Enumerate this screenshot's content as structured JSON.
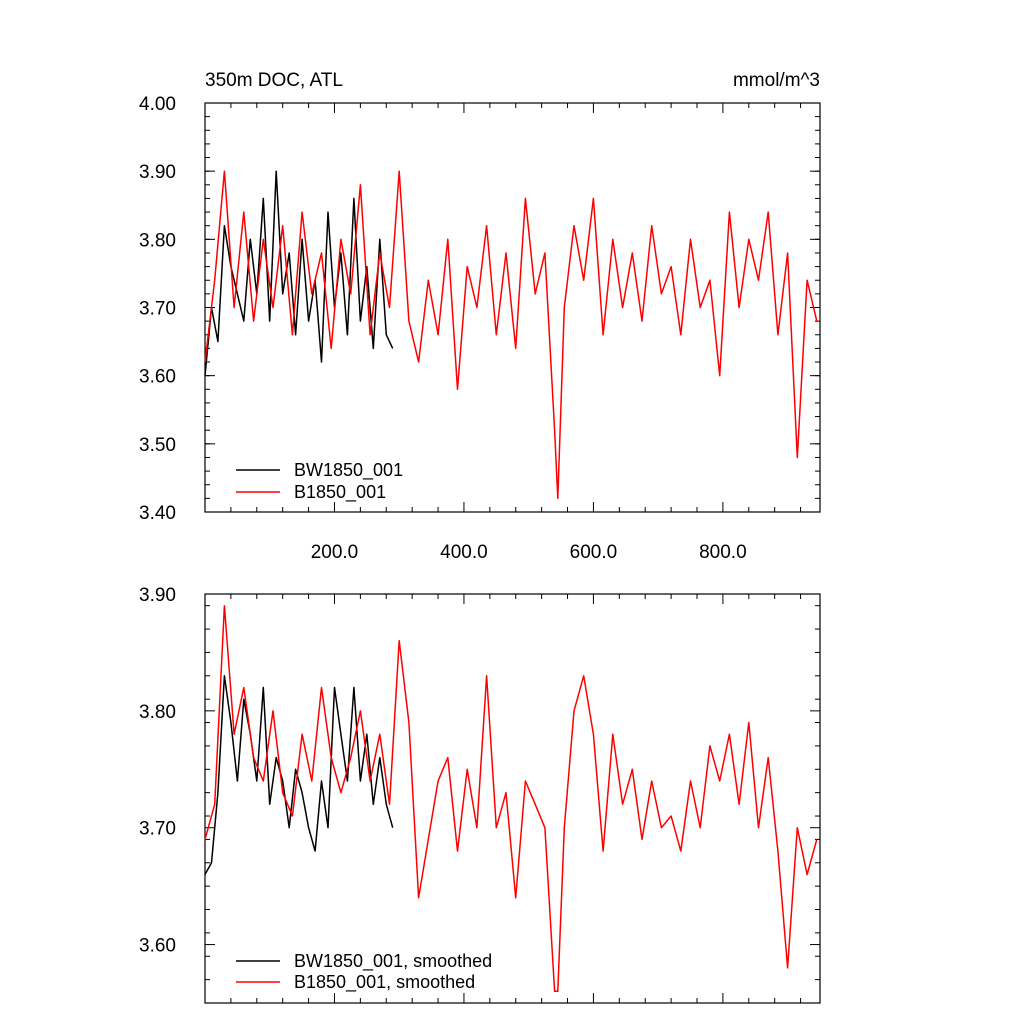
{
  "chart_data": [
    {
      "type": "line",
      "title": "350m DOC, ATL",
      "units": "mmol/m^3",
      "xlim": [
        0,
        950
      ],
      "ylim": [
        3.4,
        4.0
      ],
      "y_ticks": [
        3.4,
        3.5,
        3.6,
        3.7,
        3.8,
        3.9,
        4.0
      ],
      "y_tick_labels": [
        "3.40",
        "3.50",
        "3.60",
        "3.70",
        "3.80",
        "3.90",
        "4.00"
      ],
      "x_ticks": [
        200,
        400,
        600,
        800
      ],
      "x_tick_labels": [
        "200.0",
        "400.0",
        "600.0",
        "800.0"
      ],
      "grid": false,
      "legend_position": "bottom-left",
      "series": [
        {
          "name": "BW1850_001",
          "color": "#000000",
          "x": [
            0,
            10,
            20,
            30,
            40,
            50,
            60,
            70,
            80,
            90,
            100,
            110,
            120,
            130,
            140,
            150,
            160,
            170,
            180,
            190,
            200,
            210,
            220,
            230,
            240,
            250,
            260,
            270,
            280,
            290
          ],
          "values": [
            3.6,
            3.7,
            3.65,
            3.82,
            3.76,
            3.72,
            3.68,
            3.8,
            3.72,
            3.86,
            3.68,
            3.9,
            3.72,
            3.78,
            3.66,
            3.8,
            3.68,
            3.74,
            3.62,
            3.84,
            3.7,
            3.78,
            3.66,
            3.86,
            3.68,
            3.76,
            3.64,
            3.8,
            3.66,
            3.64
          ]
        },
        {
          "name": "B1850_001",
          "color": "#ff0000",
          "x": [
            0,
            15,
            30,
            45,
            60,
            75,
            90,
            105,
            120,
            135,
            150,
            165,
            180,
            195,
            210,
            225,
            240,
            255,
            270,
            285,
            300,
            315,
            330,
            345,
            360,
            375,
            390,
            405,
            420,
            435,
            450,
            465,
            480,
            495,
            510,
            525,
            540,
            545,
            555,
            570,
            585,
            600,
            615,
            630,
            645,
            660,
            675,
            690,
            705,
            720,
            735,
            750,
            765,
            780,
            795,
            810,
            825,
            840,
            855,
            870,
            885,
            900,
            915,
            930,
            945
          ],
          "values": [
            3.62,
            3.74,
            3.9,
            3.7,
            3.84,
            3.68,
            3.8,
            3.7,
            3.82,
            3.66,
            3.84,
            3.72,
            3.78,
            3.64,
            3.8,
            3.72,
            3.88,
            3.66,
            3.78,
            3.7,
            3.9,
            3.68,
            3.62,
            3.74,
            3.66,
            3.8,
            3.58,
            3.76,
            3.7,
            3.82,
            3.66,
            3.78,
            3.64,
            3.86,
            3.72,
            3.78,
            3.52,
            3.42,
            3.7,
            3.82,
            3.74,
            3.86,
            3.66,
            3.8,
            3.7,
            3.78,
            3.68,
            3.82,
            3.72,
            3.76,
            3.66,
            3.8,
            3.7,
            3.74,
            3.6,
            3.84,
            3.7,
            3.8,
            3.74,
            3.84,
            3.66,
            3.78,
            3.48,
            3.74,
            3.68
          ]
        }
      ]
    },
    {
      "type": "line",
      "xlim": [
        0,
        950
      ],
      "ylim": [
        3.55,
        3.9
      ],
      "y_ticks": [
        3.6,
        3.7,
        3.8,
        3.9
      ],
      "y_tick_labels": [
        "3.60",
        "3.70",
        "3.80",
        "3.90"
      ],
      "x_ticks": [
        200,
        400,
        600,
        800
      ],
      "grid": false,
      "legend_position": "bottom-left",
      "series": [
        {
          "name": "BW1850_001, smoothed",
          "color": "#000000",
          "x": [
            0,
            10,
            20,
            30,
            40,
            50,
            60,
            70,
            80,
            90,
            100,
            110,
            120,
            130,
            140,
            150,
            160,
            170,
            180,
            190,
            200,
            210,
            220,
            230,
            240,
            250,
            260,
            270,
            280,
            290
          ],
          "values": [
            3.66,
            3.67,
            3.73,
            3.83,
            3.79,
            3.74,
            3.81,
            3.78,
            3.74,
            3.82,
            3.72,
            3.76,
            3.74,
            3.7,
            3.75,
            3.73,
            3.7,
            3.68,
            3.74,
            3.7,
            3.82,
            3.78,
            3.74,
            3.82,
            3.74,
            3.78,
            3.72,
            3.76,
            3.72,
            3.7
          ]
        },
        {
          "name": "B1850_001, smoothed",
          "color": "#ff0000",
          "x": [
            0,
            15,
            30,
            45,
            60,
            75,
            90,
            105,
            120,
            135,
            150,
            165,
            180,
            195,
            210,
            225,
            240,
            255,
            270,
            285,
            300,
            315,
            330,
            345,
            360,
            375,
            390,
            405,
            420,
            435,
            450,
            465,
            480,
            495,
            510,
            525,
            540,
            545,
            555,
            570,
            585,
            600,
            615,
            630,
            645,
            660,
            675,
            690,
            705,
            720,
            735,
            750,
            765,
            780,
            795,
            810,
            825,
            840,
            855,
            870,
            885,
            900,
            915,
            930,
            945
          ],
          "values": [
            3.69,
            3.72,
            3.89,
            3.78,
            3.82,
            3.76,
            3.74,
            3.8,
            3.73,
            3.71,
            3.78,
            3.74,
            3.82,
            3.76,
            3.73,
            3.76,
            3.8,
            3.74,
            3.78,
            3.72,
            3.86,
            3.79,
            3.64,
            3.69,
            3.74,
            3.76,
            3.68,
            3.75,
            3.7,
            3.83,
            3.7,
            3.73,
            3.64,
            3.74,
            3.72,
            3.7,
            3.56,
            3.56,
            3.7,
            3.8,
            3.83,
            3.78,
            3.68,
            3.78,
            3.72,
            3.75,
            3.69,
            3.74,
            3.7,
            3.71,
            3.68,
            3.74,
            3.7,
            3.77,
            3.74,
            3.78,
            3.72,
            3.79,
            3.7,
            3.76,
            3.68,
            3.58,
            3.7,
            3.66,
            3.69
          ]
        }
      ]
    }
  ]
}
